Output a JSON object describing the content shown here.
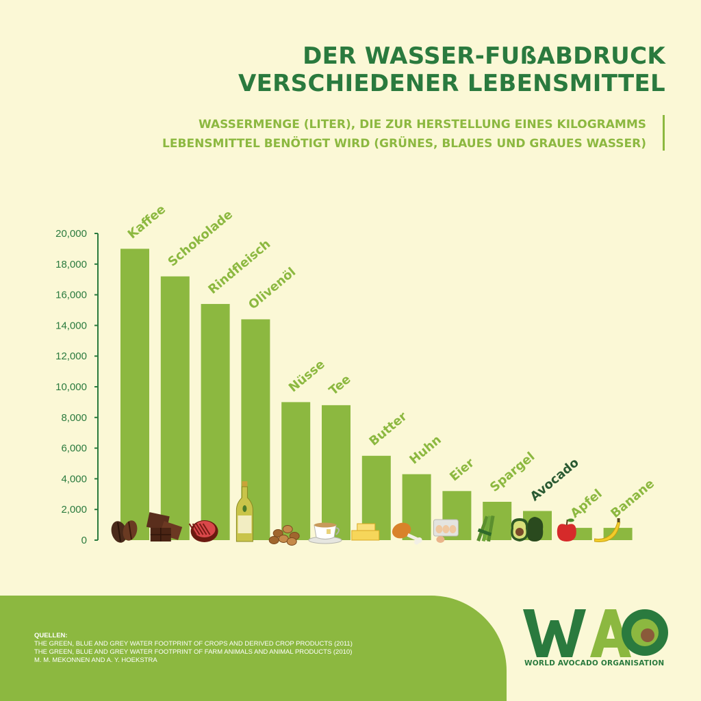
{
  "header": {
    "title_line1": "DER WASSER-FUßABDRUCK",
    "title_line2": "VERSCHIEDENER LEBENSMITTEL",
    "subtitle_line1": "WASSERMENGE (LITER), DIE ZUR HERSTELLUNG EINES KILOGRAMMS",
    "subtitle_line2": "LEBENSMITTEL BENÖTIGT WIRD (GRÜNES, BLAUES UND GRAUES WASSER)"
  },
  "chart_data": {
    "type": "bar",
    "title": "DER WASSER-FUßABDRUCK VERSCHIEDENER LEBENSMITTEL",
    "subtitle": "WASSERMENGE (LITER), DIE ZUR HERSTELLUNG EINES KILOGRAMMS LEBENSMITTEL BENÖTIGT WIRD (GRÜNES, BLAUES UND GRAUES WASSER)",
    "xlabel": "",
    "ylabel": "",
    "ylim": [
      0,
      20000
    ],
    "yticks": [
      0,
      2000,
      4000,
      6000,
      8000,
      10000,
      12000,
      14000,
      16000,
      18000,
      20000
    ],
    "ytick_labels": [
      "0",
      "2,000",
      "4,000",
      "6,000",
      "8,000",
      "10,000",
      "12,000",
      "14,000",
      "16,000",
      "18,000",
      "20,000"
    ],
    "categories": [
      "Kaffee",
      "Schokolade",
      "Rindfleisch",
      "Olivenöl",
      "Nüsse",
      "Tee",
      "Butter",
      "Huhn",
      "Eier",
      "Spargel",
      "Avocado",
      "Apfel",
      "Banane"
    ],
    "values": [
      19000,
      17200,
      15400,
      14400,
      9000,
      8800,
      5500,
      4300,
      3200,
      2500,
      1900,
      800,
      800
    ],
    "icons": [
      "coffee-beans-icon",
      "chocolate-icon",
      "steak-icon",
      "olive-oil-bottle-icon",
      "nuts-icon",
      "tea-cup-icon",
      "butter-icon",
      "chicken-leg-icon",
      "eggs-icon",
      "asparagus-icon",
      "avocado-icon",
      "apple-icon",
      "banana-icon"
    ],
    "highlight": "Avocado",
    "grid": false,
    "colors": {
      "bar": "#8cb840",
      "label": "#8cb840",
      "highlight_label": "#2a5a32",
      "axis": "#2a7a3e",
      "tick_text": "#2a7a3e"
    }
  },
  "footer": {
    "sources_heading": "QUELLEN:",
    "source_1": "THE GREEN, BLUE AND GREY WATER FOOTPRINT OF CROPS AND DERIVED CROP PRODUCTS (2011)",
    "source_2": "THE GREEN, BLUE AND GREY WATER FOOTPRINT OF FARM ANIMALS AND ANIMAL PRODUCTS  (2010)",
    "source_3": "M. M. MEKONNEN AND A. Y. HOEKSTRA"
  },
  "logo": {
    "letters": "WAO",
    "name": "WORLD AVOCADO ORGANISATION",
    "colors": {
      "dark": "#2a7a3e",
      "light": "#8cb840",
      "seed": "#8a5a3a"
    }
  }
}
